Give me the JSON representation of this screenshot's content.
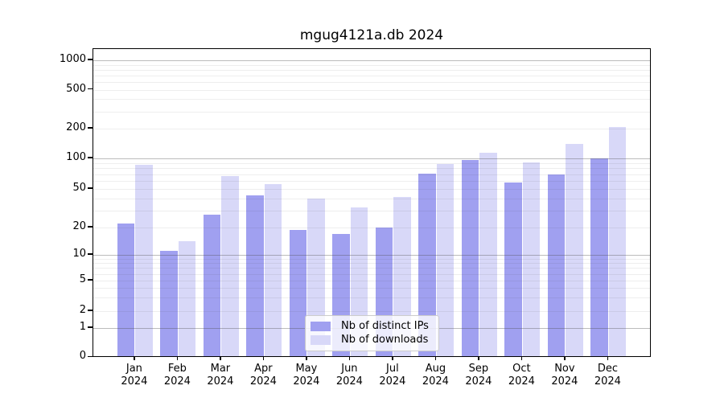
{
  "chart_data": {
    "type": "bar",
    "title": "mgug4121a.db 2024",
    "categories": [
      "Jan",
      "Feb",
      "Mar",
      "Apr",
      "May",
      "Jun",
      "Jul",
      "Aug",
      "Sep",
      "Oct",
      "Nov",
      "Dec"
    ],
    "year": "2024",
    "series": [
      {
        "name": "Nb of distinct IPs",
        "color": "#a0a0f0",
        "values": [
          22,
          11,
          27,
          43,
          19,
          17,
          20,
          71,
          97,
          58,
          70,
          100
        ]
      },
      {
        "name": "Nb of downloads",
        "color": "#d8d8f8",
        "values": [
          86,
          14,
          67,
          56,
          40,
          32,
          41,
          88,
          113,
          92,
          140,
          209
        ]
      }
    ],
    "yscale": "symlog",
    "yticks": [
      0,
      1,
      2,
      5,
      10,
      20,
      50,
      100,
      200,
      500,
      1000
    ],
    "ylim": [
      0,
      1300
    ],
    "grid": true,
    "legend_position": "lower center",
    "colors": {
      "grid_major": "#b0b0b0",
      "grid_minor": "#ececec",
      "spine": "#000000",
      "background": "#ffffff"
    }
  }
}
